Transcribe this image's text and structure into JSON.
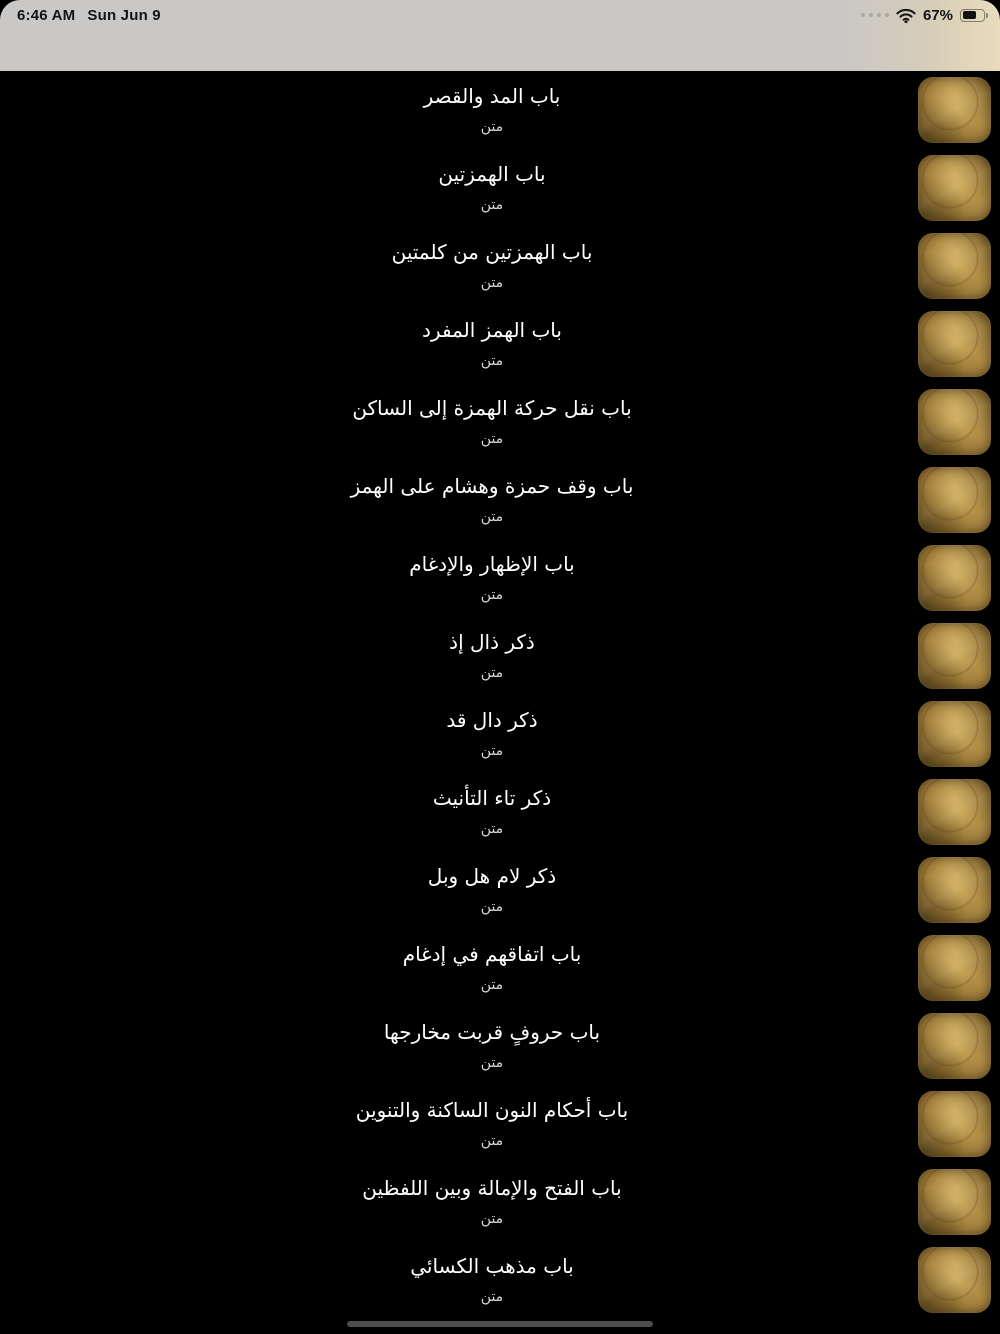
{
  "status_bar": {
    "time": "6:46 AM",
    "date": "Sun Jun 9",
    "battery_percent": "67%",
    "battery_level": 67,
    "icons": [
      "cellular-signal-dots-icon",
      "wifi-icon",
      "battery-icon"
    ]
  },
  "list": {
    "items": [
      {
        "title": "باب المد والقصر",
        "subtitle": "متن"
      },
      {
        "title": "باب الهمزتين",
        "subtitle": "متن"
      },
      {
        "title": "باب الهمزتين من كلمتين",
        "subtitle": "متن"
      },
      {
        "title": "باب الهمز المفرد",
        "subtitle": "متن"
      },
      {
        "title": "باب نقل حركة الهمزة إلى الساكن",
        "subtitle": "متن"
      },
      {
        "title": "باب وقف حمزة وهشام على الهمز",
        "subtitle": "متن"
      },
      {
        "title": "باب الإظهار والإدغام",
        "subtitle": "متن"
      },
      {
        "title": "ذكر ذال إذ",
        "subtitle": "متن"
      },
      {
        "title": "ذكر دال قد",
        "subtitle": "متن"
      },
      {
        "title": "ذكر تاء التأنيث",
        "subtitle": "متن"
      },
      {
        "title": "ذكر لام هل وبل",
        "subtitle": "متن"
      },
      {
        "title": "باب اتفاقهم في إدغام",
        "subtitle": "متن"
      },
      {
        "title": "باب حروفٍ قربت مخارجها",
        "subtitle": "متن"
      },
      {
        "title": "باب أحكام النون الساكنة والتنوين",
        "subtitle": "متن"
      },
      {
        "title": "باب الفتح والإمالة وبين اللفظين",
        "subtitle": "متن"
      },
      {
        "title": "باب مذهب الكسائي",
        "subtitle": "متن"
      }
    ],
    "row_icon": "gold-leaf-tile-icon"
  },
  "colors": {
    "background": "#000000",
    "status_bar_gray": "#c9c8c6",
    "status_bar_beige": "#e9dcbd",
    "title_text": "#ffffff",
    "subtitle_text": "#d9d9d9",
    "gold_mid": "#a5823c",
    "gold_bright": "#bd9c51",
    "gold_dark": "#7a5a23",
    "home_indicator": "#4d4d4f"
  }
}
